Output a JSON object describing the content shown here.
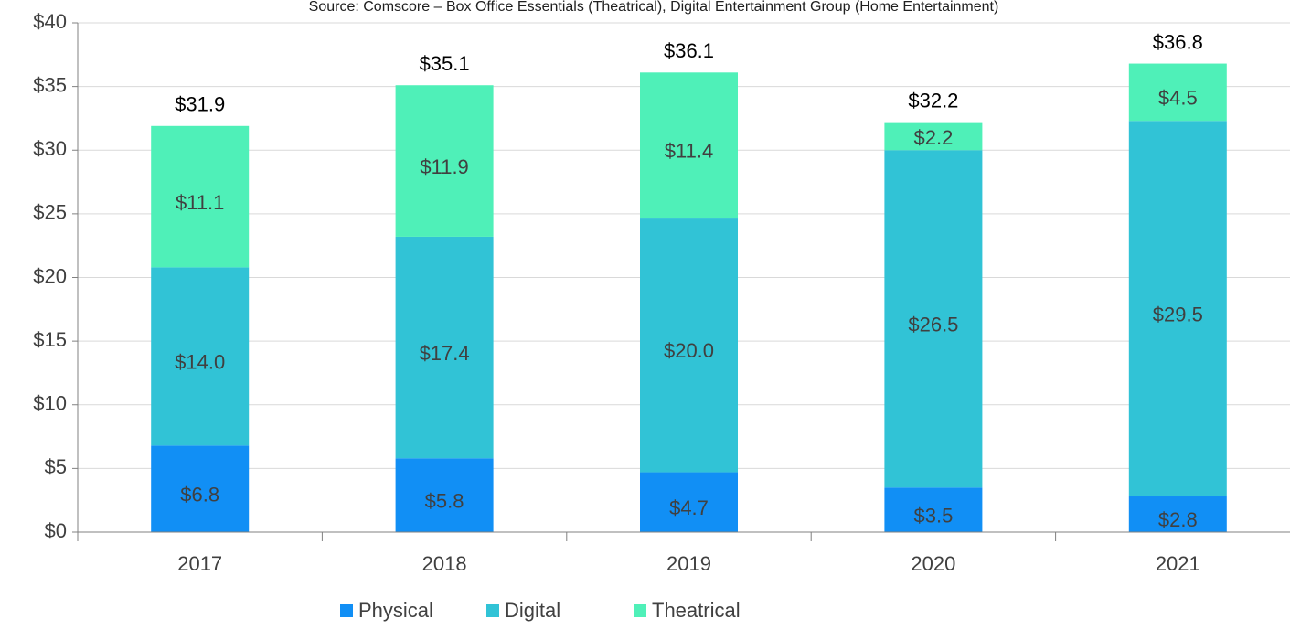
{
  "chart_data": {
    "type": "stacked_bar",
    "subtitle": "Source: Comscore – Box Office Essentials (Theatrical), Digital Entertainment Group (Home Entertainment)",
    "categories": [
      "2017",
      "2018",
      "2019",
      "2020",
      "2021"
    ],
    "series": [
      {
        "name": "Physical",
        "color": "#118ff5",
        "values": [
          6.8,
          5.8,
          4.7,
          3.5,
          2.8
        ],
        "value_labels": [
          "$6.8",
          "$5.8",
          "$4.7",
          "$3.5",
          "$2.8"
        ]
      },
      {
        "name": "Digital",
        "color": "#31c3d6",
        "values": [
          14.0,
          17.4,
          20.0,
          26.5,
          29.5
        ],
        "value_labels": [
          "$14.0",
          "$17.4",
          "$20.0",
          "$26.5",
          "$29.5"
        ]
      },
      {
        "name": "Theatrical",
        "color": "#4ff0b8",
        "values": [
          11.1,
          11.9,
          11.4,
          2.2,
          4.5
        ],
        "value_labels": [
          "$11.1",
          "$11.9",
          "$11.4",
          "$2.2",
          "$4.5"
        ]
      }
    ],
    "totals": [
      31.9,
      35.1,
      36.1,
      32.2,
      36.8
    ],
    "totals_labels": [
      "$31.9",
      "$35.1",
      "$36.1",
      "$32.2",
      "$36.8"
    ],
    "ylim": [
      0,
      40
    ],
    "yticks": [
      {
        "value": 0,
        "label": "$0"
      },
      {
        "value": 5,
        "label": "$5"
      },
      {
        "value": 10,
        "label": "$10"
      },
      {
        "value": 15,
        "label": "$15"
      },
      {
        "value": 20,
        "label": "$20"
      },
      {
        "value": 25,
        "label": "$25"
      },
      {
        "value": 30,
        "label": "$30"
      },
      {
        "value": 35,
        "label": "$35"
      },
      {
        "value": 40,
        "label": "$40"
      }
    ],
    "grid": true,
    "legend": "bottom"
  }
}
